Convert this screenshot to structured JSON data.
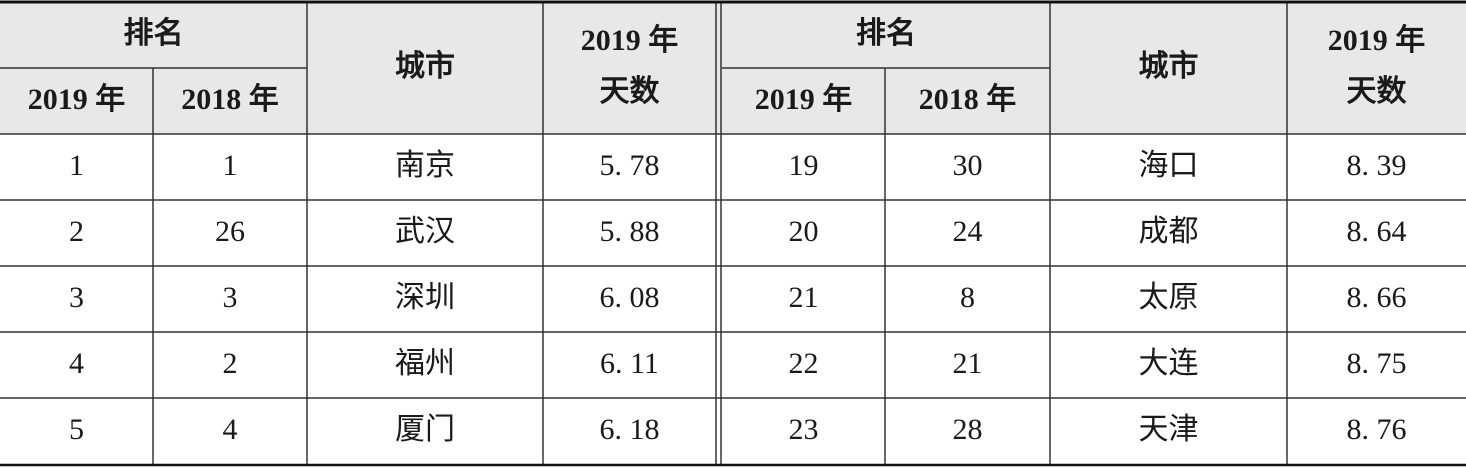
{
  "table": {
    "left": {
      "header": {
        "rank": "排名",
        "rank_years": [
          "2019 年",
          "2018 年"
        ],
        "city": "城市",
        "days": [
          "2019 年",
          "天数"
        ]
      },
      "rows": [
        [
          1,
          1,
          "南京",
          "5. 78"
        ],
        [
          2,
          26,
          "武汉",
          "5. 88"
        ],
        [
          3,
          3,
          "深圳",
          "6. 08"
        ],
        [
          4,
          2,
          "福州",
          "6. 11"
        ],
        [
          5,
          4,
          "厦门",
          "6. 18"
        ]
      ]
    },
    "right": {
      "header": {
        "rank": "排名",
        "rank_years": [
          "2019 年",
          "2018 年"
        ],
        "city": "城市",
        "days": [
          "2019 年",
          "天数"
        ]
      },
      "rows": [
        [
          19,
          30,
          "海口",
          "8. 39"
        ],
        [
          20,
          24,
          "成都",
          "8. 64"
        ],
        [
          21,
          8,
          "太原",
          "8. 66"
        ],
        [
          22,
          21,
          "大连",
          "8. 75"
        ],
        [
          23,
          28,
          "天津",
          "8. 76"
        ]
      ]
    }
  }
}
